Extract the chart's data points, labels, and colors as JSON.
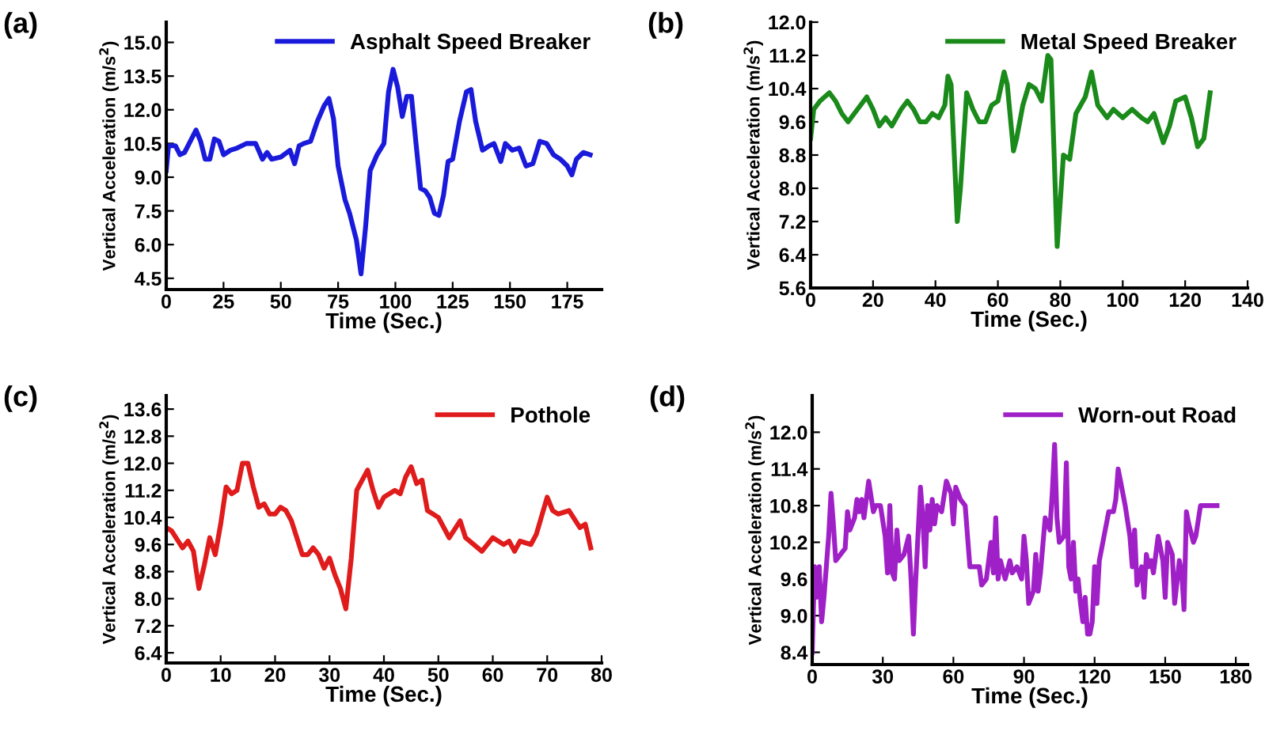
{
  "chart_data": [
    {
      "type": "line",
      "annotations": [
        "(a)"
      ],
      "xlabel": "Time (Sec.)",
      "ylabel": "Vertical Acceleration (m/s$^{2}$)",
      "legend": "top right",
      "xlim": [
        0,
        190
      ],
      "ylim": [
        4.0,
        15.9
      ],
      "xticks": [
        0,
        25,
        50,
        75,
        100,
        125,
        150,
        175
      ],
      "yticks": [
        {
          "value": 4.5,
          "label": "4.5"
        },
        {
          "value": 6.0,
          "label": "6.0"
        },
        {
          "value": 7.5,
          "label": "7.5"
        },
        {
          "value": 9.0,
          "label": "9.0"
        },
        {
          "value": 10.5,
          "label": "10.5"
        },
        {
          "value": 12.0,
          "label": "12.0"
        },
        {
          "value": 13.5,
          "label": "13.5"
        },
        {
          "value": 15.0,
          "label": "15.0"
        }
      ],
      "x": [
        0,
        1,
        4,
        6,
        8,
        10,
        13,
        15,
        17,
        19,
        21,
        23,
        25,
        28,
        31,
        35,
        39,
        42,
        44,
        46,
        50,
        54,
        56,
        58,
        60,
        63,
        66,
        69,
        71,
        73,
        75,
        78,
        80,
        83,
        85,
        87,
        89,
        92,
        95,
        97,
        99,
        101,
        103,
        105,
        107,
        109,
        111,
        113,
        115,
        117,
        119,
        121,
        123,
        125,
        128,
        131,
        133,
        135,
        138,
        141,
        143,
        146,
        148,
        151,
        154,
        157,
        160,
        163,
        166,
        169,
        172,
        175,
        177,
        179,
        182,
        185
      ],
      "series": [
        {
          "name": "Asphalt Speed Breaker",
          "color": "#1a1adb",
          "values": [
            9.3,
            10.4,
            10.4,
            10.0,
            10.1,
            10.5,
            11.1,
            10.6,
            9.8,
            9.8,
            10.7,
            10.6,
            10.0,
            10.2,
            10.3,
            10.5,
            10.5,
            9.8,
            10.1,
            9.8,
            9.9,
            10.2,
            9.6,
            10.4,
            10.5,
            10.6,
            11.5,
            12.2,
            12.5,
            11.6,
            9.5,
            8.0,
            7.4,
            6.2,
            4.7,
            6.8,
            9.3,
            10.0,
            10.5,
            12.8,
            13.8,
            13.0,
            11.7,
            12.6,
            12.6,
            10.5,
            8.5,
            8.4,
            8.1,
            7.4,
            7.3,
            8.2,
            9.7,
            9.8,
            11.5,
            12.8,
            12.9,
            11.5,
            10.2,
            10.4,
            10.5,
            9.7,
            10.5,
            10.2,
            10.3,
            9.5,
            9.6,
            10.6,
            10.5,
            10.0,
            9.8,
            9.5,
            9.1,
            9.8,
            10.1,
            10.0
          ]
        }
      ]
    },
    {
      "type": "line",
      "annotations": [
        "(b)"
      ],
      "xlabel": "Time (Sec.)",
      "ylabel": "Vertical Acceleration (m/s$^{2}$)",
      "legend": "top right",
      "xlim": [
        0,
        140
      ],
      "ylim": [
        5.6,
        12.0
      ],
      "xticks": [
        0,
        20,
        40,
        60,
        80,
        100,
        120,
        140
      ],
      "yticks": [
        5.6,
        6.4,
        7.2,
        {
          "value": 8.0,
          "label": "8.0"
        },
        8.8,
        9.6,
        10.4,
        11.2,
        {
          "value": 12.0,
          "label": "12.0"
        }
      ],
      "x": [
        0,
        1,
        3,
        6,
        8,
        10,
        12,
        15,
        18,
        20,
        22,
        24,
        26,
        29,
        31,
        33,
        35,
        37,
        39,
        41,
        43,
        44,
        45,
        47,
        48,
        50,
        52,
        54,
        56,
        58,
        60,
        62,
        63,
        65,
        66,
        68,
        70,
        72,
        74,
        76,
        77,
        79,
        81,
        83,
        85,
        88,
        90,
        92,
        95,
        97,
        100,
        103,
        106,
        108,
        110,
        113,
        115,
        117,
        120,
        122,
        124,
        126,
        128
      ],
      "series": [
        {
          "name": "Metal Speed Breaker",
          "color": "#1a8a1a",
          "values": [
            9.2,
            9.9,
            10.1,
            10.3,
            10.1,
            9.8,
            9.6,
            9.9,
            10.2,
            9.9,
            9.5,
            9.7,
            9.5,
            9.9,
            10.1,
            9.9,
            9.6,
            9.6,
            9.8,
            9.7,
            10.0,
            10.7,
            10.5,
            7.2,
            8.0,
            10.3,
            9.9,
            9.6,
            9.6,
            10.0,
            10.1,
            10.8,
            10.5,
            8.9,
            9.2,
            10.0,
            10.5,
            10.4,
            10.1,
            11.2,
            11.1,
            6.6,
            8.8,
            8.7,
            9.8,
            10.2,
            10.8,
            10.0,
            9.7,
            9.9,
            9.7,
            9.9,
            9.7,
            9.6,
            9.8,
            9.1,
            9.5,
            10.1,
            10.2,
            9.7,
            9.0,
            9.2,
            10.3
          ]
        }
      ]
    },
    {
      "type": "line",
      "annotations": [
        "(c)"
      ],
      "xlabel": "Time (Sec.)",
      "ylabel": "Vertical Acceleration (m/s$^{2}$)",
      "legend": "top right",
      "xlim": [
        0,
        80
      ],
      "ylim": [
        6.1,
        14.0
      ],
      "xticks": [
        0,
        10,
        20,
        30,
        40,
        50,
        60,
        70,
        80
      ],
      "yticks": [
        6.4,
        7.2,
        {
          "value": 8.0,
          "label": "8.0"
        },
        8.8,
        9.6,
        10.4,
        11.2,
        {
          "value": 12.0,
          "label": "12.0"
        },
        12.8,
        13.6
      ],
      "x": [
        0,
        1,
        3,
        4,
        5,
        6,
        7,
        8,
        9,
        10,
        11,
        12,
        13,
        14,
        15,
        16,
        17,
        18,
        19,
        20,
        21,
        22,
        23,
        24,
        25,
        26,
        27,
        28,
        29,
        30,
        31,
        32,
        33,
        34,
        35,
        37,
        38,
        39,
        40,
        42,
        43,
        44,
        45,
        46,
        47,
        48,
        50,
        52,
        54,
        55,
        58,
        60,
        62,
        63,
        64,
        65,
        67,
        68,
        70,
        71,
        72,
        74,
        76,
        77,
        78
      ],
      "series": [
        {
          "name": "Pothole",
          "color": "#e01b1b",
          "values": [
            10.1,
            10.0,
            9.5,
            9.7,
            9.4,
            8.3,
            9.0,
            9.8,
            9.3,
            10.2,
            11.3,
            11.1,
            11.2,
            12.0,
            12.0,
            11.3,
            10.7,
            10.8,
            10.5,
            10.5,
            10.7,
            10.6,
            10.3,
            9.8,
            9.3,
            9.3,
            9.5,
            9.3,
            8.9,
            9.2,
            8.7,
            8.3,
            7.7,
            9.2,
            11.2,
            11.8,
            11.2,
            10.7,
            11.0,
            11.2,
            11.1,
            11.6,
            11.9,
            11.4,
            11.5,
            10.6,
            10.4,
            9.8,
            10.3,
            9.8,
            9.4,
            9.8,
            9.6,
            9.7,
            9.4,
            9.7,
            9.6,
            9.9,
            11.0,
            10.6,
            10.5,
            10.6,
            10.1,
            10.2,
            9.5
          ]
        }
      ]
    },
    {
      "type": "line",
      "annotations": [
        "(d)"
      ],
      "xlabel": "Time (Sec.)",
      "ylabel": "Vertical Acceleration (m/s$^{2}$)",
      "legend": "top right",
      "xlim": [
        0,
        185
      ],
      "ylim": [
        8.2,
        12.6
      ],
      "xticks": [
        0,
        30,
        60,
        90,
        120,
        150,
        180
      ],
      "yticks": [
        8.4,
        {
          "value": 9.0,
          "label": "9.0"
        },
        9.6,
        10.2,
        10.8,
        11.4,
        {
          "value": 12.0,
          "label": "12.0"
        }
      ],
      "x": [
        0,
        1,
        2,
        3,
        4,
        5,
        7,
        8,
        9,
        10,
        12,
        14,
        15,
        16,
        18,
        19,
        20,
        21,
        22,
        24,
        26,
        27,
        29,
        31,
        32,
        33,
        34,
        35,
        36,
        37,
        39,
        41,
        42,
        43,
        44,
        46,
        47,
        48,
        49,
        50,
        51,
        52,
        53,
        55,
        57,
        59,
        60,
        61,
        63,
        65,
        67,
        69,
        71,
        72,
        74,
        76,
        77,
        78,
        79,
        80,
        82,
        84,
        85,
        87,
        89,
        90,
        91,
        92,
        94,
        95,
        96,
        97,
        99,
        101,
        102,
        103,
        104,
        105,
        107,
        108,
        109,
        110,
        111,
        112,
        113,
        114,
        115,
        116,
        117,
        118,
        119,
        120,
        121,
        122,
        124,
        126,
        128,
        129,
        130,
        131,
        133,
        135,
        136,
        137,
        138,
        140,
        141,
        142,
        143,
        144,
        145,
        147,
        149,
        150,
        151,
        153,
        154,
        156,
        157,
        158,
        159,
        160,
        162,
        163,
        165,
        167,
        170,
        172
      ],
      "series": [
        {
          "name": "Worn-out Road",
          "color": "#a020c8",
          "values": [
            8.4,
            9.8,
            9.3,
            9.8,
            8.9,
            9.3,
            10.3,
            11.0,
            10.5,
            9.9,
            10.0,
            10.1,
            10.7,
            10.4,
            10.6,
            10.9,
            10.7,
            10.9,
            10.6,
            11.2,
            10.7,
            10.8,
            10.8,
            10.3,
            9.7,
            10.8,
            9.7,
            9.6,
            10.4,
            9.9,
            10.0,
            10.3,
            9.6,
            8.7,
            9.6,
            11.1,
            10.6,
            9.8,
            10.8,
            10.4,
            10.9,
            10.5,
            10.8,
            10.7,
            11.2,
            11.0,
            10.5,
            11.1,
            10.9,
            10.8,
            9.8,
            9.8,
            9.8,
            9.5,
            9.6,
            10.2,
            9.7,
            10.6,
            9.6,
            9.9,
            9.6,
            9.9,
            9.7,
            9.8,
            9.6,
            10.3,
            9.9,
            9.2,
            9.4,
            10.0,
            9.4,
            9.7,
            10.6,
            10.4,
            11.0,
            11.8,
            10.6,
            10.2,
            10.3,
            11.5,
            9.8,
            9.6,
            10.2,
            9.4,
            9.6,
            9.2,
            8.9,
            9.3,
            8.7,
            8.7,
            8.9,
            9.8,
            9.2,
            9.9,
            10.3,
            10.7,
            10.7,
            10.9,
            11.4,
            11.2,
            10.8,
            10.3,
            9.8,
            10.4,
            9.5,
            9.8,
            9.3,
            10.0,
            9.8,
            9.9,
            9.7,
            10.3,
            9.9,
            9.3,
            10.2,
            10.0,
            9.2,
            9.9,
            9.7,
            9.1,
            10.7,
            10.5,
            10.2,
            10.3,
            10.8,
            10.8,
            10.8,
            10.8
          ]
        }
      ]
    }
  ]
}
